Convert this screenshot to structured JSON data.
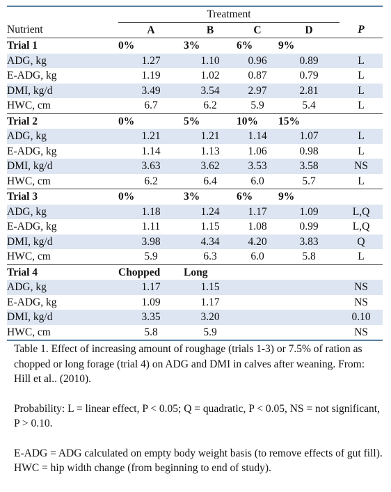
{
  "table": {
    "treatment_label": "Treatment",
    "headers": [
      "Nutrient",
      "A",
      "B",
      "C",
      "D",
      "P"
    ],
    "trials": [
      {
        "name": "Trial 1",
        "levels": [
          "0%",
          "3%",
          "6%",
          "9%"
        ],
        "rows": [
          {
            "label": "ADG, kg",
            "values": [
              "1.27",
              "1.10",
              "0.96",
              "0.89"
            ],
            "p": "L"
          },
          {
            "label": "E-ADG, kg",
            "values": [
              "1.19",
              "1.02",
              "0.87",
              "0.79"
            ],
            "p": "L"
          },
          {
            "label": "DMI, kg/d",
            "values": [
              "3.49",
              "3.54",
              "2.97",
              "2.81"
            ],
            "p": "L"
          },
          {
            "label": "HWC, cm",
            "values": [
              "6.7",
              "6.2",
              "5.9",
              "5.4"
            ],
            "p": "L"
          }
        ]
      },
      {
        "name": "Trial 2",
        "levels": [
          "0%",
          "5%",
          "10%",
          "15%"
        ],
        "rows": [
          {
            "label": "ADG, kg",
            "values": [
              "1.21",
              "1.21",
              "1.14",
              "1.07"
            ],
            "p": "L"
          },
          {
            "label": "E-ADG, kg",
            "values": [
              "1.14",
              "1.13",
              "1.06",
              "0.98"
            ],
            "p": "L"
          },
          {
            "label": "DMI, kg/d",
            "values": [
              "3.63",
              "3.62",
              "3.53",
              "3.58"
            ],
            "p": "NS"
          },
          {
            "label": "HWC, cm",
            "values": [
              "6.2",
              "6.4",
              "6.0",
              "5.7"
            ],
            "p": "L"
          }
        ]
      },
      {
        "name": "Trial 3",
        "levels": [
          "0%",
          "3%",
          "6%",
          "9%"
        ],
        "rows": [
          {
            "label": "ADG, kg",
            "values": [
              "1.18",
              "1.24",
              "1.17",
              "1.09"
            ],
            "p": "L,Q"
          },
          {
            "label": "E-ADG, kg",
            "values": [
              "1.11",
              "1.15",
              "1.08",
              "0.99"
            ],
            "p": "L,Q"
          },
          {
            "label": "DMI, kg/d",
            "values": [
              "3.98",
              "4.34",
              "4.20",
              "3.83"
            ],
            "p": "Q"
          },
          {
            "label": "HWC, cm",
            "values": [
              "5.9",
              "6.3",
              "6.0",
              "5.8"
            ],
            "p": "L"
          }
        ]
      },
      {
        "name": "Trial 4",
        "levels": [
          "Chopped",
          "Long",
          "",
          ""
        ],
        "rows": [
          {
            "label": "ADG, kg",
            "values": [
              "1.17",
              "1.15",
              "",
              ""
            ],
            "p": "NS"
          },
          {
            "label": "E-ADG, kg",
            "values": [
              "1.09",
              "1.17",
              "",
              ""
            ],
            "p": "NS"
          },
          {
            "label": "DMI, kg/d",
            "values": [
              "3.35",
              "3.20",
              "",
              ""
            ],
            "p": "0.10"
          },
          {
            "label": "HWC, cm",
            "values": [
              "5.8",
              "5.9",
              "",
              ""
            ],
            "p": "NS"
          }
        ]
      }
    ]
  },
  "notes": {
    "caption": "Table 1.  Effect of increasing amount of roughage (trials 1-3) or 7.5% of ration as chopped or long forage (trial 4) on ADG and DMI in calves after weaning.   From:  Hill et al.. (2010).",
    "probability": "Probability:  L = linear effect, P < 0.05; Q = quadratic, P < 0.05, NS = not significant, P > 0.10.",
    "abbreviations": "E-ADG = ADG calculated on empty body weight basis (to remove effects of gut fill).  HWC = hip width change (from beginning to end of study)."
  },
  "colors": {
    "row_shade": "#dde5f2",
    "rule_blue": "#5b7f9e"
  }
}
